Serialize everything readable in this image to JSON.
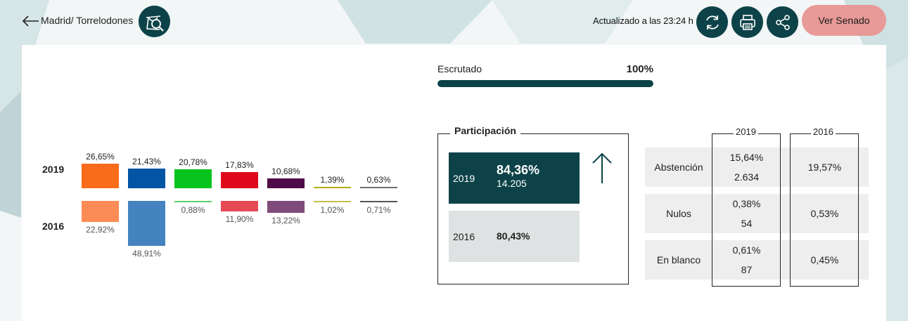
{
  "header": {
    "breadcrumb": "Madrid/ Torrelodones",
    "updated": "Actualizado a las 23:24 h",
    "senado_button": "Ver Senado"
  },
  "colors": {
    "accent": "#0d4348",
    "senado": "#e89a98"
  },
  "results": {
    "year_2019": "2019",
    "year_2016": "2016",
    "parties": [
      {
        "color2019": "#f96c1b",
        "color2016": "#fc8c55",
        "p2019": "26,65%",
        "p2016": "22,92%",
        "v2019": 26.65,
        "v2016": 22.92
      },
      {
        "color2019": "#0155a4",
        "color2016": "#4583c0",
        "p2019": "21,43%",
        "p2016": "48,91%",
        "v2019": 21.43,
        "v2016": 48.91
      },
      {
        "color2019": "#07c31e",
        "color2016": "#5ad16b",
        "p2019": "20,78%",
        "p2016": "0,88%",
        "v2019": 20.78,
        "v2016": 0.88
      },
      {
        "color2019": "#e0081b",
        "color2016": "#e54a55",
        "p2019": "17,83%",
        "p2016": "11,90%",
        "v2019": 17.83,
        "v2016": 11.9
      },
      {
        "color2019": "#4f0b47",
        "color2016": "#7f4b7a",
        "p2019": "10,68%",
        "p2016": "13,22%",
        "v2019": 10.68,
        "v2016": 13.22
      },
      {
        "color2019": "#b5ac18",
        "color2016": "#c4bd4a",
        "p2019": "1,39%",
        "p2016": "1,02%",
        "v2019": 1.39,
        "v2016": 1.02
      },
      {
        "color2019": "#707070",
        "color2016": "#555555",
        "p2019": "0,63%",
        "p2016": "0,71%",
        "v2019": 0.63,
        "v2016": 0.71
      }
    ]
  },
  "escrutado": {
    "label": "Escrutado",
    "value": "100%",
    "fraction": 1.0
  },
  "participacion": {
    "title": "Participación",
    "y2019": {
      "year": "2019",
      "pct": "84,36%",
      "votes": "14.205"
    },
    "y2016": {
      "year": "2016",
      "pct": "80,43%"
    }
  },
  "table": {
    "col2019": "2019",
    "col2016": "2016",
    "rows": [
      {
        "label": "Abstención",
        "pct2019": "15,64%",
        "num2019": "2.634",
        "pct2016": "19,57%"
      },
      {
        "label": "Nulos",
        "pct2019": "0,38%",
        "num2019": "54",
        "pct2016": "0,53%"
      },
      {
        "label": "En blanco",
        "pct2019": "0,61%",
        "num2019": "87",
        "pct2016": "0,45%"
      }
    ]
  }
}
